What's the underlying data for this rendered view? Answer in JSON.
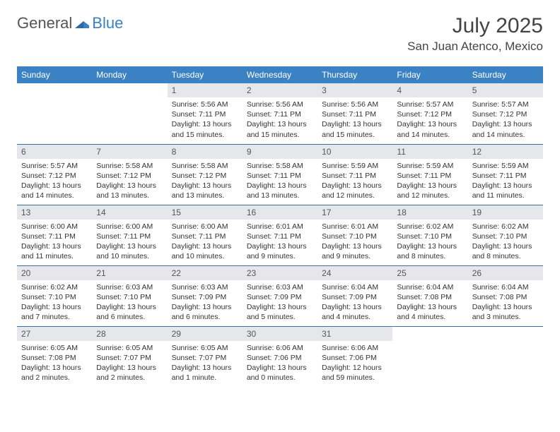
{
  "logo": {
    "general": "General",
    "blue": "Blue"
  },
  "title": "July 2025",
  "location": "San Juan Atenco, Mexico",
  "colors": {
    "header_bg": "#3b82c4",
    "header_fg": "#ffffff",
    "daynum_bg": "#e5e7ea",
    "rule": "#3b6fa0",
    "text": "#333333"
  },
  "dayHeaders": [
    "Sunday",
    "Monday",
    "Tuesday",
    "Wednesday",
    "Thursday",
    "Friday",
    "Saturday"
  ],
  "weeks": [
    [
      null,
      null,
      {
        "n": "1",
        "sr": "5:56 AM",
        "ss": "7:11 PM",
        "dl": "13 hours and 15 minutes."
      },
      {
        "n": "2",
        "sr": "5:56 AM",
        "ss": "7:11 PM",
        "dl": "13 hours and 15 minutes."
      },
      {
        "n": "3",
        "sr": "5:56 AM",
        "ss": "7:11 PM",
        "dl": "13 hours and 15 minutes."
      },
      {
        "n": "4",
        "sr": "5:57 AM",
        "ss": "7:12 PM",
        "dl": "13 hours and 14 minutes."
      },
      {
        "n": "5",
        "sr": "5:57 AM",
        "ss": "7:12 PM",
        "dl": "13 hours and 14 minutes."
      }
    ],
    [
      {
        "n": "6",
        "sr": "5:57 AM",
        "ss": "7:12 PM",
        "dl": "13 hours and 14 minutes."
      },
      {
        "n": "7",
        "sr": "5:58 AM",
        "ss": "7:12 PM",
        "dl": "13 hours and 13 minutes."
      },
      {
        "n": "8",
        "sr": "5:58 AM",
        "ss": "7:12 PM",
        "dl": "13 hours and 13 minutes."
      },
      {
        "n": "9",
        "sr": "5:58 AM",
        "ss": "7:11 PM",
        "dl": "13 hours and 13 minutes."
      },
      {
        "n": "10",
        "sr": "5:59 AM",
        "ss": "7:11 PM",
        "dl": "13 hours and 12 minutes."
      },
      {
        "n": "11",
        "sr": "5:59 AM",
        "ss": "7:11 PM",
        "dl": "13 hours and 12 minutes."
      },
      {
        "n": "12",
        "sr": "5:59 AM",
        "ss": "7:11 PM",
        "dl": "13 hours and 11 minutes."
      }
    ],
    [
      {
        "n": "13",
        "sr": "6:00 AM",
        "ss": "7:11 PM",
        "dl": "13 hours and 11 minutes."
      },
      {
        "n": "14",
        "sr": "6:00 AM",
        "ss": "7:11 PM",
        "dl": "13 hours and 10 minutes."
      },
      {
        "n": "15",
        "sr": "6:00 AM",
        "ss": "7:11 PM",
        "dl": "13 hours and 10 minutes."
      },
      {
        "n": "16",
        "sr": "6:01 AM",
        "ss": "7:11 PM",
        "dl": "13 hours and 9 minutes."
      },
      {
        "n": "17",
        "sr": "6:01 AM",
        "ss": "7:10 PM",
        "dl": "13 hours and 9 minutes."
      },
      {
        "n": "18",
        "sr": "6:02 AM",
        "ss": "7:10 PM",
        "dl": "13 hours and 8 minutes."
      },
      {
        "n": "19",
        "sr": "6:02 AM",
        "ss": "7:10 PM",
        "dl": "13 hours and 8 minutes."
      }
    ],
    [
      {
        "n": "20",
        "sr": "6:02 AM",
        "ss": "7:10 PM",
        "dl": "13 hours and 7 minutes."
      },
      {
        "n": "21",
        "sr": "6:03 AM",
        "ss": "7:10 PM",
        "dl": "13 hours and 6 minutes."
      },
      {
        "n": "22",
        "sr": "6:03 AM",
        "ss": "7:09 PM",
        "dl": "13 hours and 6 minutes."
      },
      {
        "n": "23",
        "sr": "6:03 AM",
        "ss": "7:09 PM",
        "dl": "13 hours and 5 minutes."
      },
      {
        "n": "24",
        "sr": "6:04 AM",
        "ss": "7:09 PM",
        "dl": "13 hours and 4 minutes."
      },
      {
        "n": "25",
        "sr": "6:04 AM",
        "ss": "7:08 PM",
        "dl": "13 hours and 4 minutes."
      },
      {
        "n": "26",
        "sr": "6:04 AM",
        "ss": "7:08 PM",
        "dl": "13 hours and 3 minutes."
      }
    ],
    [
      {
        "n": "27",
        "sr": "6:05 AM",
        "ss": "7:08 PM",
        "dl": "13 hours and 2 minutes."
      },
      {
        "n": "28",
        "sr": "6:05 AM",
        "ss": "7:07 PM",
        "dl": "13 hours and 2 minutes."
      },
      {
        "n": "29",
        "sr": "6:05 AM",
        "ss": "7:07 PM",
        "dl": "13 hours and 1 minute."
      },
      {
        "n": "30",
        "sr": "6:06 AM",
        "ss": "7:06 PM",
        "dl": "13 hours and 0 minutes."
      },
      {
        "n": "31",
        "sr": "6:06 AM",
        "ss": "7:06 PM",
        "dl": "12 hours and 59 minutes."
      },
      null,
      null
    ]
  ],
  "labels": {
    "sunrise": "Sunrise:",
    "sunset": "Sunset:",
    "daylight": "Daylight:"
  }
}
